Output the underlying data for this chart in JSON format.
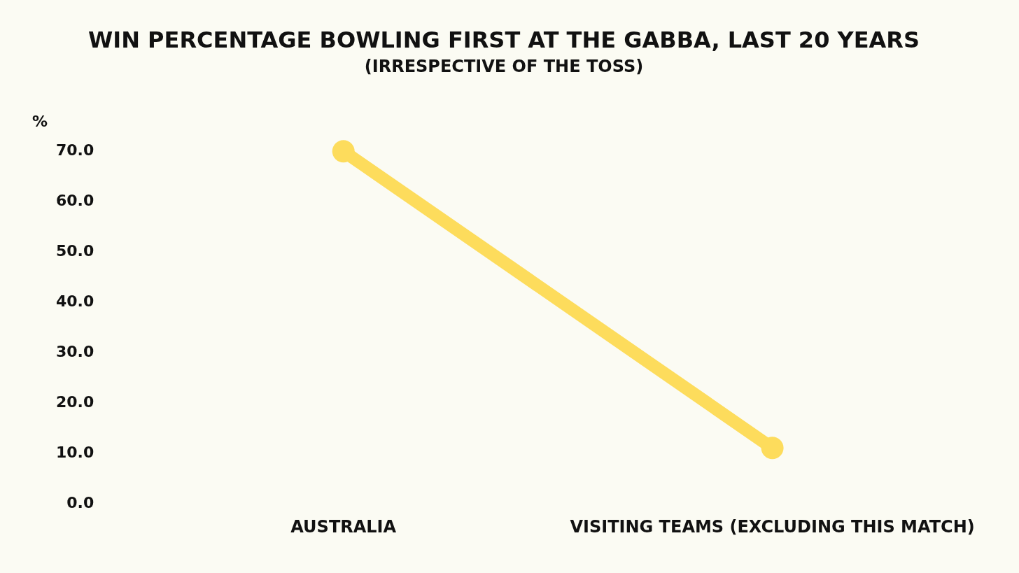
{
  "chart_data": {
    "type": "line",
    "title": "WIN PERCENTAGE BOWLING FIRST AT THE GABBA, LAST 20 YEARS",
    "subtitle": "(IRRESPECTIVE OF THE TOSS)",
    "ylabel": "%",
    "categories": [
      "AUSTRALIA",
      "VISITING TEAMS (EXCLUDING THIS MATCH)"
    ],
    "series": [
      {
        "color": "#fddc5c",
        "values": [
          70.0,
          11.1
        ]
      }
    ],
    "ylim": [
      0,
      70
    ],
    "yticks": [
      {
        "value": 0,
        "label": "0.0"
      },
      {
        "value": 10,
        "label": "10.0"
      },
      {
        "value": 20,
        "label": "20.0"
      },
      {
        "value": 30,
        "label": "30.0"
      },
      {
        "value": 40,
        "label": "40.0"
      },
      {
        "value": 50,
        "label": "50.0"
      },
      {
        "value": 60,
        "label": "60.0"
      },
      {
        "value": 70,
        "label": "70.0"
      }
    ],
    "grid": false,
    "marker": "circle"
  }
}
